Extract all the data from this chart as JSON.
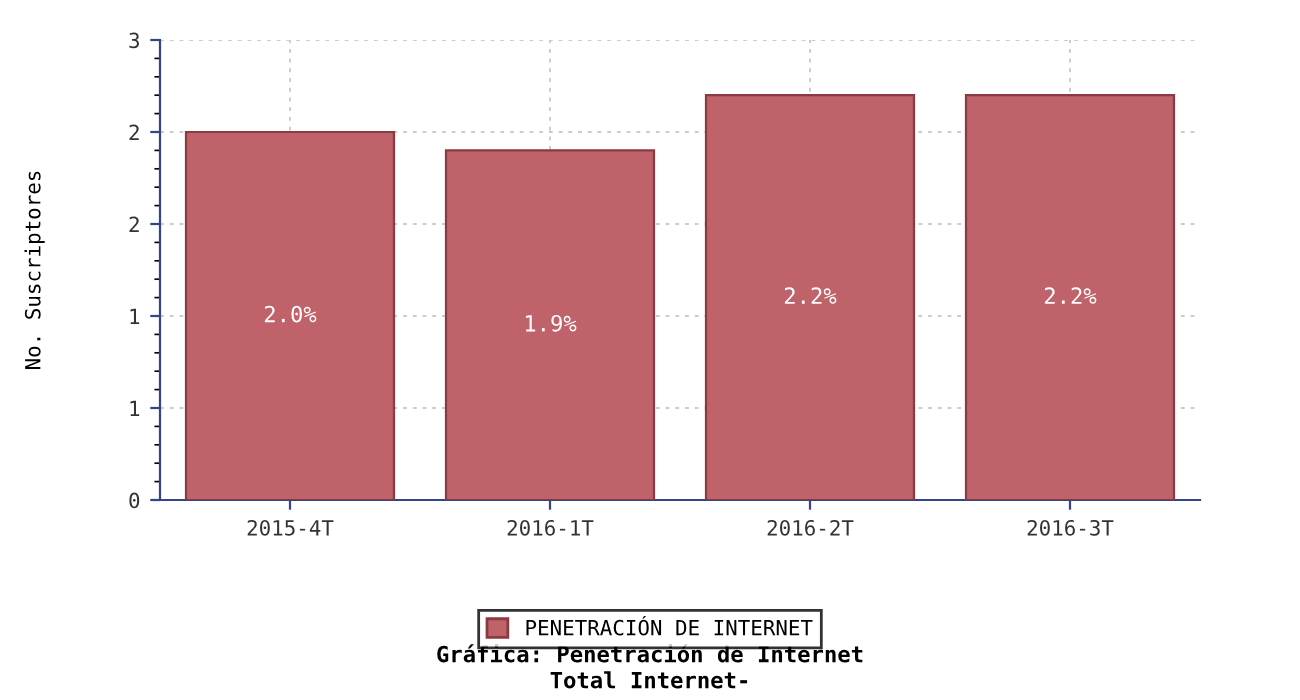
{
  "chart_data": {
    "type": "bar",
    "title": "Gráfica: Penetración de Internet",
    "subtitle": "Total Internet-",
    "ylabel": "No. Suscriptores",
    "categories": [
      "2015-4T",
      "2016-1T",
      "2016-2T",
      "2016-3T"
    ],
    "series": [
      {
        "name": "PENETRACIÓN DE INTERNET",
        "color": "#c0626a",
        "values": [
          2.0,
          1.9,
          2.2,
          2.2
        ],
        "value_labels": [
          "2.0%",
          "1.9%",
          "2.2%",
          "2.2%"
        ]
      }
    ],
    "ylim": [
      0,
      2.5
    ],
    "yticks": [
      0,
      {
        "value": 0.5,
        "label": "1"
      },
      1,
      {
        "value": 1.5,
        "label": "2"
      },
      2,
      {
        "value": 2.5,
        "label": "3"
      }
    ],
    "grid": true,
    "legend": "bottom"
  }
}
